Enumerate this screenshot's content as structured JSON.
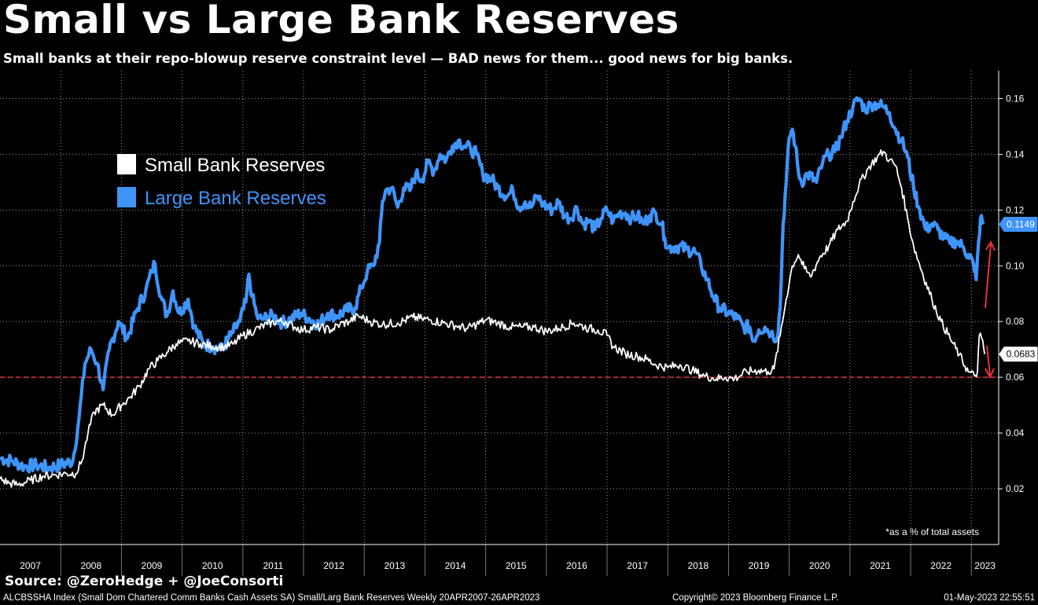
{
  "title": "Small vs Large Bank Reserves",
  "subtitle": "Small banks at their repo-blowup reserve constraint level — BAD news for them... good news for big banks.",
  "source": "Source: @ZeroHedge + @JoeConsorti",
  "footer": {
    "left": "ALCBSSHA Index (Small Dom Chartered Comm Banks Cash Assets SA) Small/Larg Bank Reserves  Weekly 20APR2007-26APR2023",
    "middle": "Copyright© 2023 Bloomberg Finance L.P.",
    "right": "01-May-2023 22:55:51"
  },
  "annotation": "*as a % of total assets",
  "colors": {
    "small": "#ffffff",
    "large": "#3f94fa",
    "reference": "#e8323c",
    "arrow": "#e8323c",
    "background": "#000000"
  },
  "chart_data": {
    "type": "line",
    "ylim": [
      0,
      0.17
    ],
    "yticks": [
      "0.02",
      "0.04",
      "0.06",
      "0.08",
      "0.10",
      "0.12",
      "0.14",
      "0.16"
    ],
    "xticks": [
      "2007",
      "2008",
      "2009",
      "2010",
      "2011",
      "2012",
      "2013",
      "2014",
      "2015",
      "2016",
      "2017",
      "2018",
      "2019",
      "2020",
      "2021",
      "2022",
      "2023"
    ],
    "xlim": [
      2007.0,
      2023.45
    ],
    "grid": true,
    "legend_position": "top-left",
    "reference_line": 0.06,
    "series": [
      {
        "name": "Small Bank Reserves",
        "last_value_label": "0.0683",
        "points": [
          [
            2007.0,
            0.0235
          ],
          [
            2007.15,
            0.022
          ],
          [
            2007.3,
            0.0215
          ],
          [
            2007.5,
            0.023
          ],
          [
            2007.7,
            0.0245
          ],
          [
            2007.9,
            0.025
          ],
          [
            2008.1,
            0.0255
          ],
          [
            2008.25,
            0.0255
          ],
          [
            2008.35,
            0.03
          ],
          [
            2008.45,
            0.04
          ],
          [
            2008.55,
            0.0475
          ],
          [
            2008.7,
            0.05
          ],
          [
            2008.85,
            0.0465
          ],
          [
            2009.0,
            0.05
          ],
          [
            2009.15,
            0.053
          ],
          [
            2009.3,
            0.057
          ],
          [
            2009.45,
            0.063
          ],
          [
            2009.6,
            0.066
          ],
          [
            2009.75,
            0.069
          ],
          [
            2009.9,
            0.072
          ],
          [
            2010.1,
            0.073
          ],
          [
            2010.3,
            0.072
          ],
          [
            2010.5,
            0.071
          ],
          [
            2010.7,
            0.071
          ],
          [
            2010.85,
            0.072
          ],
          [
            2011.0,
            0.075
          ],
          [
            2011.2,
            0.077
          ],
          [
            2011.4,
            0.079
          ],
          [
            2011.55,
            0.08
          ],
          [
            2011.7,
            0.08
          ],
          [
            2011.85,
            0.078
          ],
          [
            2012.0,
            0.077
          ],
          [
            2012.2,
            0.078
          ],
          [
            2012.45,
            0.077
          ],
          [
            2012.6,
            0.079
          ],
          [
            2012.75,
            0.08
          ],
          [
            2012.9,
            0.082
          ],
          [
            2013.1,
            0.08
          ],
          [
            2013.3,
            0.079
          ],
          [
            2013.55,
            0.0795
          ],
          [
            2013.8,
            0.0815
          ],
          [
            2013.95,
            0.081
          ],
          [
            2014.1,
            0.0805
          ],
          [
            2014.3,
            0.0795
          ],
          [
            2014.5,
            0.0785
          ],
          [
            2014.7,
            0.0775
          ],
          [
            2014.85,
            0.079
          ],
          [
            2015.0,
            0.0805
          ],
          [
            2015.2,
            0.0795
          ],
          [
            2015.4,
            0.078
          ],
          [
            2015.6,
            0.078
          ],
          [
            2015.8,
            0.078
          ],
          [
            2016.0,
            0.0765
          ],
          [
            2016.2,
            0.0775
          ],
          [
            2016.45,
            0.0795
          ],
          [
            2016.7,
            0.0775
          ],
          [
            2016.85,
            0.077
          ],
          [
            2017.0,
            0.075
          ],
          [
            2017.1,
            0.071
          ],
          [
            2017.3,
            0.0685
          ],
          [
            2017.5,
            0.0675
          ],
          [
            2017.65,
            0.0665
          ],
          [
            2017.8,
            0.0645
          ],
          [
            2018.0,
            0.0635
          ],
          [
            2018.2,
            0.0645
          ],
          [
            2018.4,
            0.0625
          ],
          [
            2018.6,
            0.0605
          ],
          [
            2018.8,
            0.0595
          ],
          [
            2018.95,
            0.06
          ],
          [
            2019.1,
            0.0595
          ],
          [
            2019.3,
            0.062
          ],
          [
            2019.5,
            0.0625
          ],
          [
            2019.65,
            0.062
          ],
          [
            2019.75,
            0.063
          ],
          [
            2019.85,
            0.075
          ],
          [
            2019.95,
            0.088
          ],
          [
            2020.05,
            0.1
          ],
          [
            2020.15,
            0.104
          ],
          [
            2020.25,
            0.099
          ],
          [
            2020.35,
            0.096
          ],
          [
            2020.5,
            0.103
          ],
          [
            2020.65,
            0.107
          ],
          [
            2020.8,
            0.113
          ],
          [
            2020.95,
            0.116
          ],
          [
            2021.05,
            0.123
          ],
          [
            2021.15,
            0.129
          ],
          [
            2021.3,
            0.135
          ],
          [
            2021.45,
            0.139
          ],
          [
            2021.55,
            0.141
          ],
          [
            2021.65,
            0.138
          ],
          [
            2021.75,
            0.136
          ],
          [
            2021.85,
            0.128
          ],
          [
            2021.95,
            0.117
          ],
          [
            2022.05,
            0.107
          ],
          [
            2022.2,
            0.097
          ],
          [
            2022.35,
            0.088
          ],
          [
            2022.5,
            0.08
          ],
          [
            2022.65,
            0.074
          ],
          [
            2022.8,
            0.068
          ],
          [
            2022.95,
            0.062
          ],
          [
            2023.05,
            0.0605
          ],
          [
            2023.1,
            0.062
          ],
          [
            2023.13,
            0.075
          ],
          [
            2023.17,
            0.074
          ],
          [
            2023.22,
            0.0683
          ]
        ]
      },
      {
        "name": "Large Bank Reserves",
        "last_value_label": "0.1149",
        "points": [
          [
            2007.0,
            0.031
          ],
          [
            2007.2,
            0.03
          ],
          [
            2007.4,
            0.028
          ],
          [
            2007.6,
            0.0285
          ],
          [
            2007.8,
            0.0275
          ],
          [
            2008.0,
            0.0285
          ],
          [
            2008.2,
            0.03
          ],
          [
            2008.3,
            0.045
          ],
          [
            2008.4,
            0.065
          ],
          [
            2008.5,
            0.07
          ],
          [
            2008.6,
            0.065
          ],
          [
            2008.7,
            0.0555
          ],
          [
            2008.8,
            0.07
          ],
          [
            2008.95,
            0.08
          ],
          [
            2009.1,
            0.074
          ],
          [
            2009.25,
            0.084
          ],
          [
            2009.4,
            0.091
          ],
          [
            2009.5,
            0.098
          ],
          [
            2009.55,
            0.101
          ],
          [
            2009.65,
            0.089
          ],
          [
            2009.75,
            0.082
          ],
          [
            2009.85,
            0.091
          ],
          [
            2009.95,
            0.083
          ],
          [
            2010.1,
            0.088
          ],
          [
            2010.2,
            0.078
          ],
          [
            2010.35,
            0.072
          ],
          [
            2010.5,
            0.071
          ],
          [
            2010.65,
            0.07
          ],
          [
            2010.8,
            0.075
          ],
          [
            2010.95,
            0.08
          ],
          [
            2011.05,
            0.087
          ],
          [
            2011.1,
            0.097
          ],
          [
            2011.15,
            0.089
          ],
          [
            2011.25,
            0.081
          ],
          [
            2011.35,
            0.081
          ],
          [
            2011.5,
            0.082
          ],
          [
            2011.65,
            0.0795
          ],
          [
            2011.8,
            0.081
          ],
          [
            2011.95,
            0.083
          ],
          [
            2012.1,
            0.081
          ],
          [
            2012.25,
            0.079
          ],
          [
            2012.4,
            0.083
          ],
          [
            2012.55,
            0.082
          ],
          [
            2012.7,
            0.084
          ],
          [
            2012.85,
            0.085
          ],
          [
            2012.95,
            0.092
          ],
          [
            2013.05,
            0.098
          ],
          [
            2013.15,
            0.1
          ],
          [
            2013.25,
            0.108
          ],
          [
            2013.3,
            0.123
          ],
          [
            2013.35,
            0.127
          ],
          [
            2013.45,
            0.128
          ],
          [
            2013.55,
            0.121
          ],
          [
            2013.65,
            0.128
          ],
          [
            2013.75,
            0.127
          ],
          [
            2013.85,
            0.133
          ],
          [
            2013.95,
            0.131
          ],
          [
            2014.05,
            0.137
          ],
          [
            2014.15,
            0.134
          ],
          [
            2014.25,
            0.14
          ],
          [
            2014.35,
            0.138
          ],
          [
            2014.45,
            0.143
          ],
          [
            2014.55,
            0.145
          ],
          [
            2014.65,
            0.143
          ],
          [
            2014.75,
            0.142
          ],
          [
            2014.85,
            0.14
          ],
          [
            2014.95,
            0.133
          ],
          [
            2015.1,
            0.131
          ],
          [
            2015.2,
            0.128
          ],
          [
            2015.35,
            0.125
          ],
          [
            2015.45,
            0.127
          ],
          [
            2015.55,
            0.121
          ],
          [
            2015.65,
            0.123
          ],
          [
            2015.75,
            0.121
          ],
          [
            2015.85,
            0.125
          ],
          [
            2015.95,
            0.122
          ],
          [
            2016.1,
            0.12
          ],
          [
            2016.2,
            0.123
          ],
          [
            2016.3,
            0.118
          ],
          [
            2016.4,
            0.117
          ],
          [
            2016.5,
            0.121
          ],
          [
            2016.6,
            0.115
          ],
          [
            2016.7,
            0.116
          ],
          [
            2016.8,
            0.113
          ],
          [
            2016.9,
            0.117
          ],
          [
            2017.0,
            0.12
          ],
          [
            2017.1,
            0.116
          ],
          [
            2017.2,
            0.119
          ],
          [
            2017.3,
            0.119
          ],
          [
            2017.4,
            0.117
          ],
          [
            2017.5,
            0.118
          ],
          [
            2017.6,
            0.115
          ],
          [
            2017.7,
            0.118
          ],
          [
            2017.8,
            0.119
          ],
          [
            2017.9,
            0.115
          ],
          [
            2017.95,
            0.11
          ],
          [
            2018.0,
            0.1065
          ],
          [
            2018.15,
            0.107
          ],
          [
            2018.3,
            0.106
          ],
          [
            2018.45,
            0.105
          ],
          [
            2018.55,
            0.1
          ],
          [
            2018.65,
            0.095
          ],
          [
            2018.75,
            0.089
          ],
          [
            2018.85,
            0.085
          ],
          [
            2019.0,
            0.083
          ],
          [
            2019.15,
            0.081
          ],
          [
            2019.25,
            0.078
          ],
          [
            2019.35,
            0.078
          ],
          [
            2019.4,
            0.073
          ],
          [
            2019.5,
            0.077
          ],
          [
            2019.6,
            0.078
          ],
          [
            2019.7,
            0.076
          ],
          [
            2019.8,
            0.074
          ],
          [
            2019.85,
            0.085
          ],
          [
            2019.9,
            0.115
          ],
          [
            2019.95,
            0.13
          ],
          [
            2020.0,
            0.146
          ],
          [
            2020.05,
            0.149
          ],
          [
            2020.1,
            0.143
          ],
          [
            2020.15,
            0.134
          ],
          [
            2020.2,
            0.13
          ],
          [
            2020.3,
            0.133
          ],
          [
            2020.45,
            0.13
          ],
          [
            2020.55,
            0.137
          ],
          [
            2020.65,
            0.14
          ],
          [
            2020.75,
            0.141
          ],
          [
            2020.85,
            0.146
          ],
          [
            2020.95,
            0.152
          ],
          [
            2021.05,
            0.157
          ],
          [
            2021.15,
            0.16
          ],
          [
            2021.25,
            0.156
          ],
          [
            2021.35,
            0.158
          ],
          [
            2021.45,
            0.158
          ],
          [
            2021.55,
            0.157
          ],
          [
            2021.65,
            0.155
          ],
          [
            2021.75,
            0.149
          ],
          [
            2021.85,
            0.145
          ],
          [
            2021.95,
            0.139
          ],
          [
            2022.05,
            0.128
          ],
          [
            2022.15,
            0.12
          ],
          [
            2022.25,
            0.113
          ],
          [
            2022.35,
            0.115
          ],
          [
            2022.45,
            0.113
          ],
          [
            2022.55,
            0.11
          ],
          [
            2022.65,
            0.108
          ],
          [
            2022.75,
            0.109
          ],
          [
            2022.85,
            0.107
          ],
          [
            2022.95,
            0.104
          ],
          [
            2023.0,
            0.103
          ],
          [
            2023.05,
            0.098
          ],
          [
            2023.08,
            0.095
          ],
          [
            2023.12,
            0.109
          ],
          [
            2023.15,
            0.117
          ],
          [
            2023.2,
            0.1149
          ]
        ]
      }
    ]
  }
}
